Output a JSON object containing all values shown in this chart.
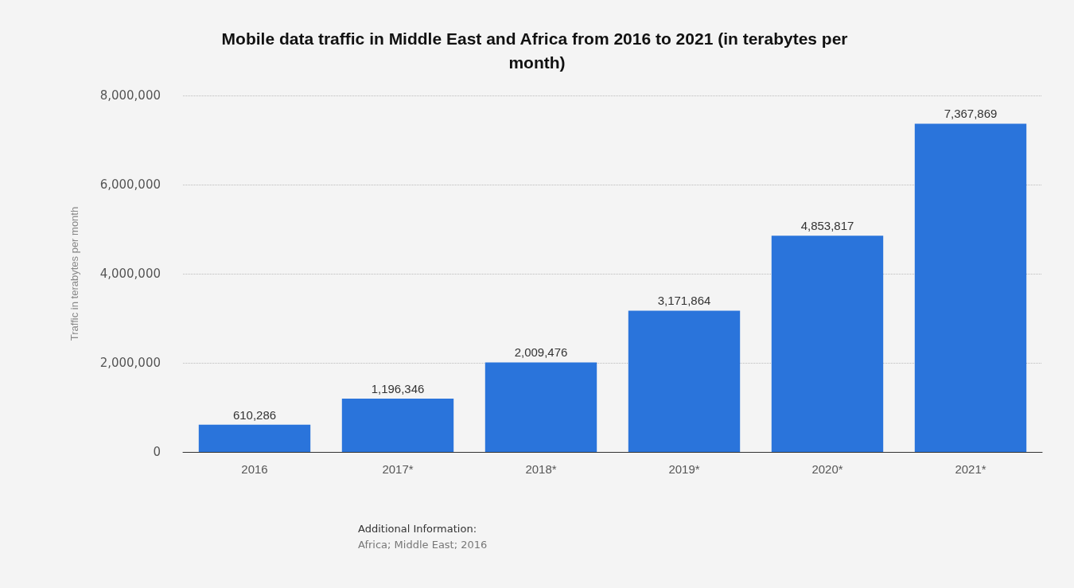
{
  "chart_data": {
    "type": "bar",
    "title": "Mobile data traffic in Middle East and Africa from 2016 to 2021 (in terabytes per month)",
    "ylabel": "Traffic in terabytes per month",
    "categories": [
      "2016",
      "2017*",
      "2018*",
      "2019*",
      "2020*",
      "2021*"
    ],
    "values": [
      610286,
      1196346,
      2009476,
      3171864,
      4853817,
      7367869
    ],
    "value_labels": [
      "610,286",
      "1,196,346",
      "2,009,476",
      "3,171,864",
      "4,853,817",
      "7,367,869"
    ],
    "color": "#2a74db",
    "ylim": [
      0,
      8000000
    ],
    "yticks": [
      0,
      {
        "value": 2000000,
        "label": "2,000,000"
      },
      {
        "value": 4000000,
        "label": "4,000,000"
      },
      {
        "value": 6000000,
        "label": "6,000,000"
      },
      {
        "value": 8000000,
        "label": "8,000,000"
      }
    ],
    "grid": "y",
    "annotations": [
      "Additional Information:",
      "Africa; Middle East; 2016"
    ]
  }
}
